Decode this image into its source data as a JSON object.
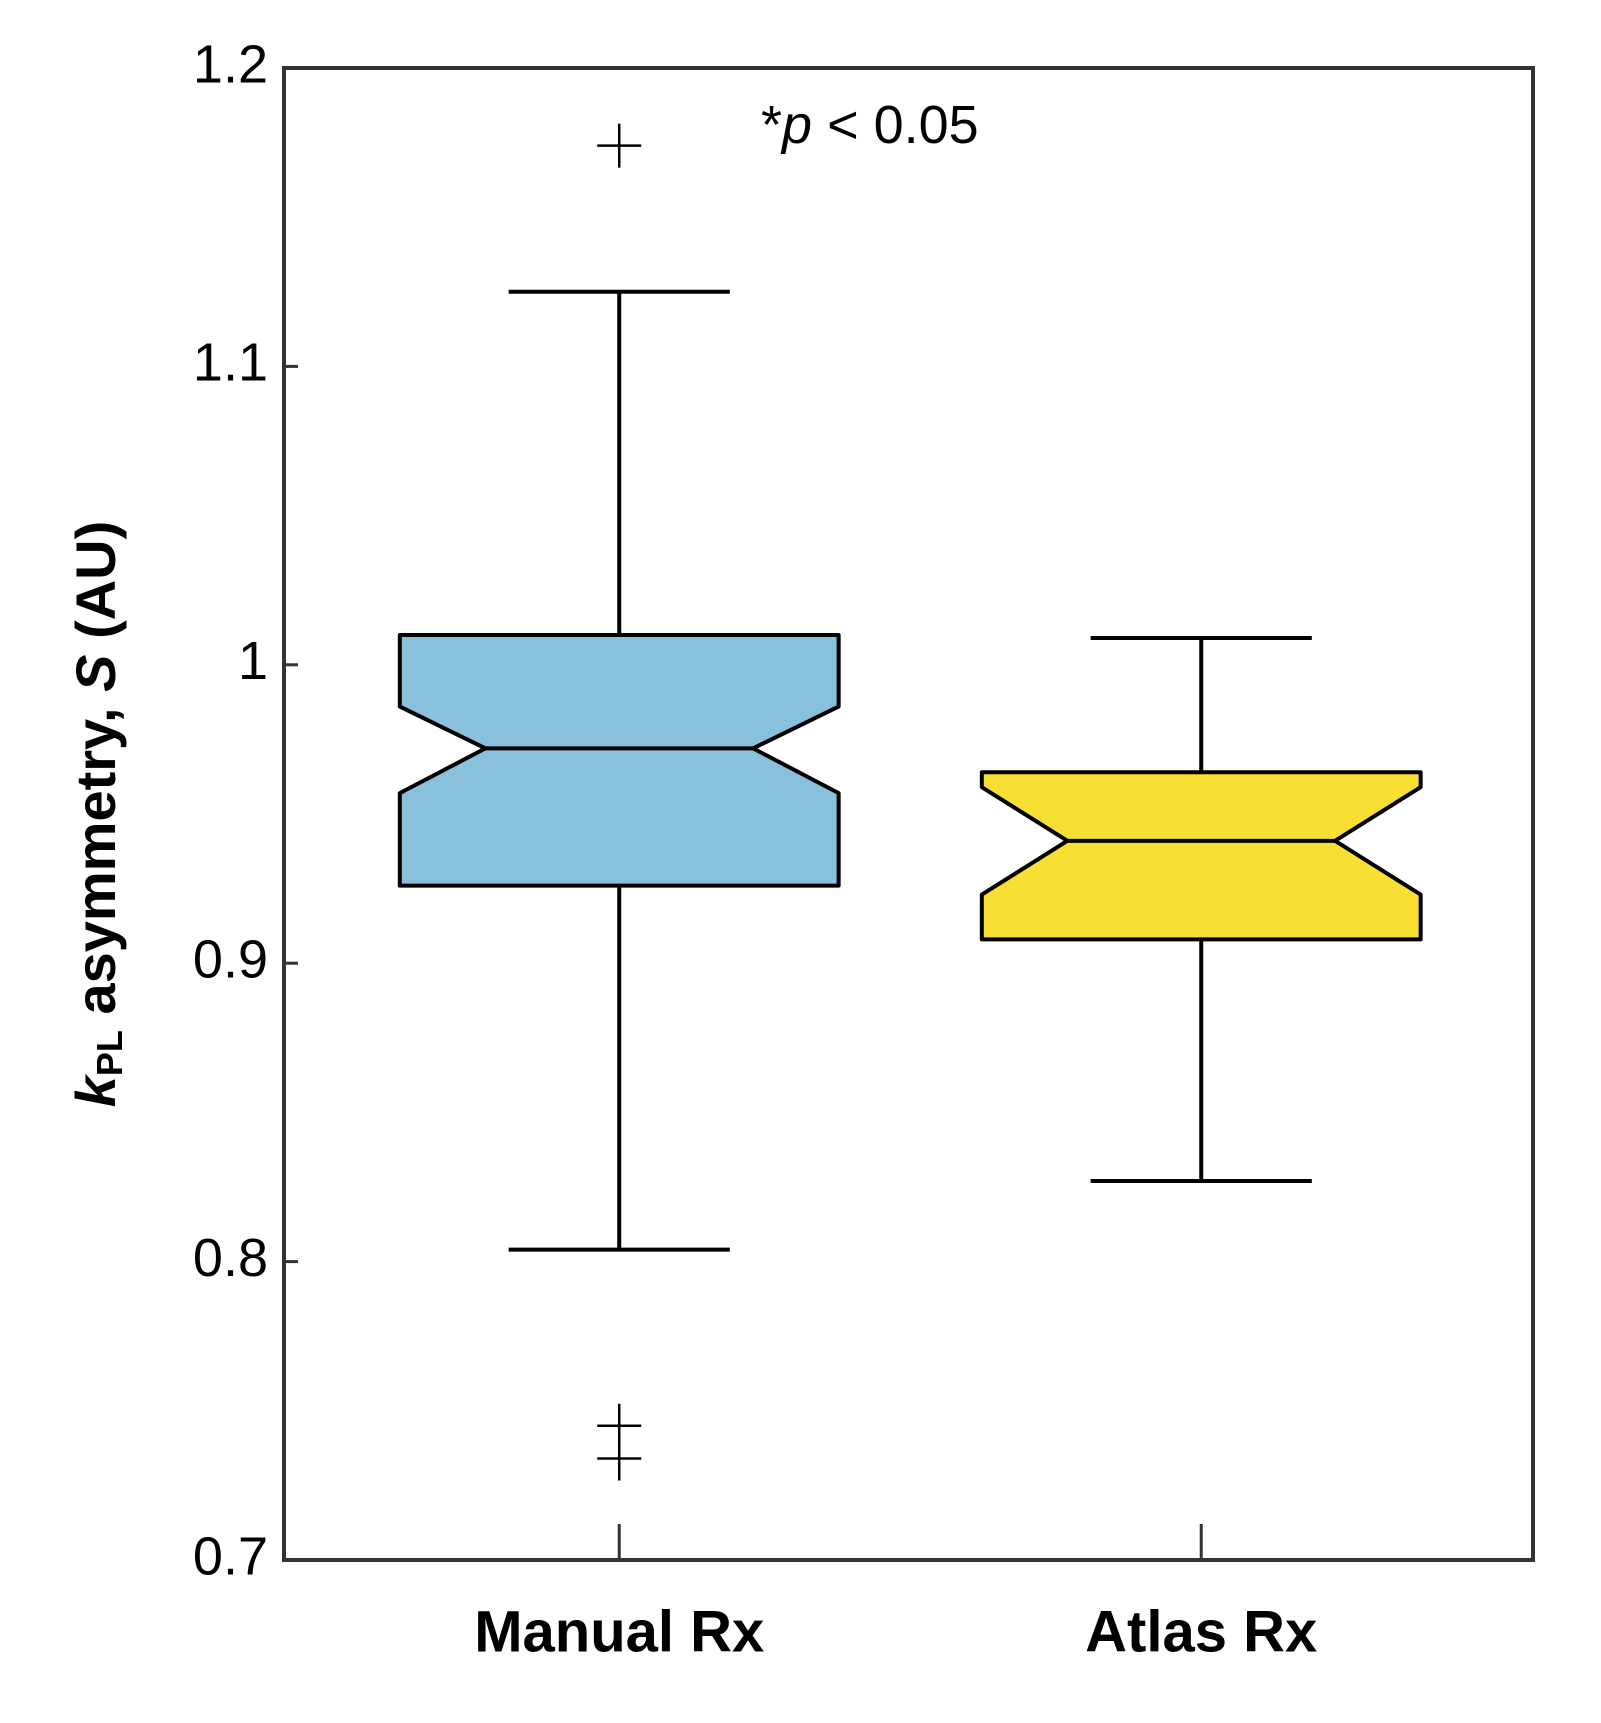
{
  "chart_data": {
    "type": "box",
    "ylabel_parts": [
      "k",
      "PL",
      " asymmetry, ",
      "S",
      " (AU)"
    ],
    "annotation_parts": [
      "*",
      "p",
      " < 0.05"
    ],
    "categories": [
      "Manual Rx",
      "Atlas Rx"
    ],
    "series": [
      {
        "name": "Manual Rx",
        "color": "#89c0dc",
        "whisker_low": 0.804,
        "q1": 0.926,
        "notch_low": 0.957,
        "median": 0.972,
        "notch_high": 0.986,
        "q3": 1.01,
        "whisker_high": 1.125,
        "outliers": [
          1.174,
          0.745,
          0.734
        ]
      },
      {
        "name": "Atlas Rx",
        "color": "#f8df33",
        "whisker_low": 0.827,
        "q1": 0.908,
        "notch_low": 0.923,
        "median": 0.941,
        "notch_high": 0.959,
        "q3": 0.964,
        "whisker_high": 1.009,
        "outliers": []
      }
    ],
    "ylim": [
      0.7,
      1.2
    ],
    "yticks": [
      0.7,
      0.8,
      0.9,
      1,
      1.1,
      1.2
    ]
  }
}
